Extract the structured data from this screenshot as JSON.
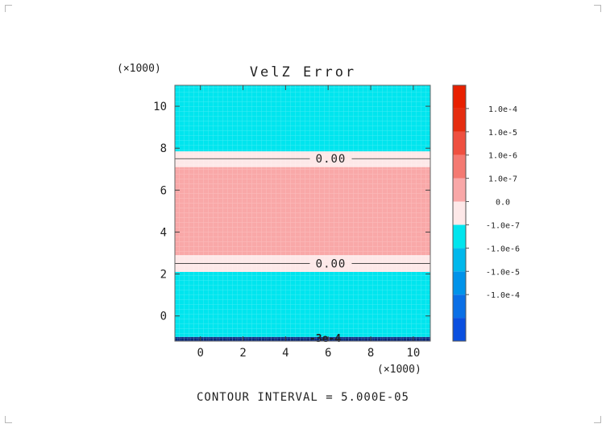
{
  "chart_data": {
    "type": "heatmap",
    "title": "VelZ Error",
    "axis_scale_label": "(×1000)",
    "x": {
      "min": -1.2,
      "max": 10.8,
      "ticks": [
        0,
        2,
        4,
        6,
        8,
        10
      ],
      "tick_labels": [
        "0",
        "2",
        "4",
        "6",
        "8",
        "10"
      ],
      "scale_label": "(×1000)"
    },
    "y": {
      "min": -1.2,
      "max": 11.0,
      "ticks": [
        0,
        2,
        4,
        6,
        8,
        10
      ],
      "tick_labels": [
        "0",
        "2",
        "4",
        "6",
        "8",
        "10"
      ],
      "scale_label": "(×1000)"
    },
    "bands": [
      {
        "y0": -1.2,
        "y1": -1.0,
        "level": -0.0001,
        "color": "#1a3f9e"
      },
      {
        "y0": -1.0,
        "y1": 2.1,
        "level": -1e-07,
        "color": "#00e5ee"
      },
      {
        "y0": 2.1,
        "y1": 2.9,
        "level": 0.0,
        "color": "#fde8e8"
      },
      {
        "y0": 2.9,
        "y1": 7.1,
        "level": 1e-07,
        "color": "#f9a8a8"
      },
      {
        "y0": 7.1,
        "y1": 7.85,
        "level": 0.0,
        "color": "#fde8e8"
      },
      {
        "y0": 7.85,
        "y1": 11.0,
        "level": -1e-07,
        "color": "#00e5ee"
      }
    ],
    "contours": [
      {
        "y": 7.5,
        "label": "0.00"
      },
      {
        "y": 2.5,
        "label": "0.00"
      },
      {
        "y": -1.05,
        "label": "-3e-4"
      }
    ],
    "colorbar": {
      "colors": [
        "#0a4fdf",
        "#0a6fe6",
        "#0093ea",
        "#00b8ec",
        "#00e5ee",
        "#fde8e8",
        "#f9a8a8",
        "#f47a72",
        "#ef5040",
        "#e52d10",
        "#e82000"
      ],
      "labels": [
        "1.0e-4",
        "1.0e-5",
        "1.0e-6",
        "1.0e-7",
        "0.0",
        "-1.0e-7",
        "-1.0e-6",
        "-1.0e-5",
        "-1.0e-4"
      ]
    },
    "footer": "CONTOUR INTERVAL = 5.000E-05"
  }
}
